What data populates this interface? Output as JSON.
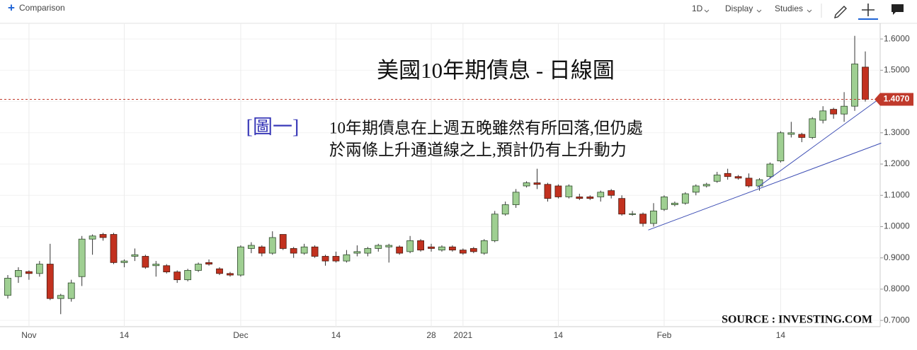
{
  "toolbar": {
    "comparison": "Comparison",
    "interval": "1D",
    "display": "Display",
    "studies": "Studies"
  },
  "chart_data": {
    "type": "candlestick",
    "title": "美國10年期債息 - 日線圖",
    "label": "[圖一]",
    "annotation": [
      "10年期債息在上週五晚雖然有所回落,但仍處",
      "於兩條上升通道線之上,預計仍有上升動力"
    ],
    "source": "SOURCE : INVESTING.COM",
    "categories": [
      null,
      null,
      "Nov",
      null,
      null,
      null,
      null,
      null,
      null,
      null,
      null,
      "14",
      null,
      null,
      null,
      null,
      null,
      null,
      null,
      null,
      null,
      null,
      "Dec",
      null,
      null,
      null,
      null,
      null,
      null,
      null,
      null,
      "14",
      null,
      null,
      null,
      null,
      null,
      null,
      null,
      null,
      "28",
      null,
      null,
      "2021",
      null,
      null,
      null,
      null,
      null,
      null,
      null,
      null,
      "14",
      null,
      null,
      null,
      null,
      null,
      null,
      null,
      null,
      null,
      "Feb",
      null,
      null,
      null,
      null,
      null,
      null,
      null,
      null,
      null,
      null,
      "14",
      null,
      null,
      null,
      null,
      null,
      null,
      null,
      null
    ],
    "open": [
      0.78,
      0.84,
      0.856,
      0.85,
      0.88,
      0.77,
      0.77,
      0.84,
      0.96,
      0.975,
      0.975,
      0.885,
      0.905,
      0.905,
      0.875,
      0.875,
      0.855,
      0.83,
      0.86,
      0.885,
      0.865,
      0.85,
      0.845,
      0.93,
      0.935,
      0.915,
      0.975,
      0.93,
      0.915,
      0.935,
      0.905,
      0.905,
      0.89,
      0.915,
      0.915,
      0.93,
      0.935,
      0.935,
      0.92,
      0.955,
      0.935,
      0.925,
      0.935,
      0.925,
      0.93,
      0.915,
      0.955,
      1.04,
      1.07,
      1.13,
      1.14,
      1.135,
      1.13,
      1.095,
      1.095,
      1.095,
      1.095,
      1.115,
      1.09,
      1.04,
      1.04,
      1.01,
      1.055,
      1.07,
      1.075,
      1.11,
      1.13,
      1.145,
      1.17,
      1.16,
      1.155,
      1.13,
      1.16,
      1.21,
      1.295,
      1.295,
      1.285,
      1.34,
      1.375,
      1.36,
      1.385,
      1.51
    ],
    "high": [
      0.845,
      0.87,
      0.86,
      0.89,
      0.945,
      0.785,
      0.83,
      0.97,
      0.975,
      0.98,
      0.98,
      0.895,
      0.93,
      0.91,
      0.89,
      0.88,
      0.86,
      0.865,
      0.885,
      0.895,
      0.87,
      0.855,
      0.94,
      0.95,
      0.94,
      0.985,
      0.975,
      0.935,
      0.945,
      0.94,
      0.91,
      0.92,
      0.925,
      0.94,
      0.935,
      0.945,
      0.945,
      0.94,
      0.97,
      0.96,
      0.945,
      0.94,
      0.94,
      0.93,
      0.935,
      0.96,
      1.05,
      1.08,
      1.12,
      1.145,
      1.185,
      1.14,
      1.135,
      1.135,
      1.105,
      1.1,
      1.115,
      1.12,
      1.1,
      1.05,
      1.045,
      1.075,
      1.1,
      1.08,
      1.11,
      1.135,
      1.14,
      1.175,
      1.185,
      1.165,
      1.17,
      1.155,
      1.205,
      1.305,
      1.335,
      1.3,
      1.35,
      1.385,
      1.38,
      1.43,
      1.61,
      1.56
    ],
    "low": [
      0.77,
      0.82,
      0.83,
      0.84,
      0.765,
      0.72,
      0.76,
      0.81,
      0.91,
      0.955,
      0.88,
      0.87,
      0.89,
      0.865,
      0.84,
      0.85,
      0.82,
      0.825,
      0.855,
      0.875,
      0.845,
      0.84,
      0.84,
      0.915,
      0.905,
      0.91,
      0.925,
      0.9,
      0.91,
      0.9,
      0.875,
      0.885,
      0.885,
      0.905,
      0.905,
      0.92,
      0.885,
      0.91,
      0.915,
      0.92,
      0.92,
      0.92,
      0.92,
      0.91,
      0.915,
      0.91,
      0.95,
      1.035,
      1.06,
      1.125,
      1.12,
      1.08,
      1.09,
      1.09,
      1.085,
      1.085,
      1.08,
      1.09,
      1.035,
      1.035,
      1.0,
      1.0,
      1.05,
      1.065,
      1.07,
      1.1,
      1.125,
      1.14,
      1.15,
      1.15,
      1.125,
      1.115,
      1.155,
      1.205,
      1.285,
      1.27,
      1.28,
      1.33,
      1.345,
      1.335,
      1.37,
      1.4
    ],
    "close": [
      0.835,
      0.86,
      0.85,
      0.88,
      0.77,
      0.78,
      0.82,
      0.96,
      0.97,
      0.965,
      0.885,
      0.89,
      0.91,
      0.87,
      0.88,
      0.855,
      0.83,
      0.86,
      0.88,
      0.88,
      0.85,
      0.845,
      0.935,
      0.94,
      0.915,
      0.965,
      0.93,
      0.915,
      0.935,
      0.905,
      0.89,
      0.89,
      0.91,
      0.92,
      0.93,
      0.94,
      0.94,
      0.915,
      0.955,
      0.925,
      0.93,
      0.935,
      0.925,
      0.915,
      0.92,
      0.955,
      1.04,
      1.07,
      1.11,
      1.14,
      1.135,
      1.09,
      1.095,
      1.13,
      1.09,
      1.09,
      1.11,
      1.1,
      1.04,
      1.041,
      1.01,
      1.05,
      1.095,
      1.075,
      1.105,
      1.13,
      1.135,
      1.165,
      1.16,
      1.155,
      1.13,
      1.15,
      1.2,
      1.3,
      1.3,
      1.285,
      1.345,
      1.37,
      1.36,
      1.385,
      1.52,
      1.407
    ],
    "up_color": "#9fcf92",
    "down_color": "#c2311f",
    "trendlines": [
      {
        "color": "#3c4db4",
        "x": [
          60.5,
          82.5
        ],
        "values": [
          0.989,
          1.267
        ]
      },
      {
        "color": "#3c4db4",
        "x": [
          70.8,
          82.3
        ],
        "values": [
          1.125,
          1.408
        ]
      }
    ],
    "last_price": {
      "value": 1.407,
      "label": "1.4070"
    },
    "last_price_color": "#c0392b",
    "ylim": [
      0.68,
      1.65
    ],
    "yticks": [
      {
        "value": 0.7,
        "label": "0.7000"
      },
      {
        "value": 0.8,
        "label": "0.8000"
      },
      {
        "value": 0.9,
        "label": "0.9000"
      },
      {
        "value": 1.0,
        "label": "1.0000"
      },
      {
        "value": 1.1,
        "label": "1.1000"
      },
      {
        "value": 1.2,
        "label": "1.2000"
      },
      {
        "value": 1.3,
        "label": "1.3000"
      },
      {
        "value": 1.4,
        "label": "1.4000"
      },
      {
        "value": 1.5,
        "label": "1.5000"
      },
      {
        "value": 1.6,
        "label": "1.6000"
      }
    ],
    "grid": true
  }
}
